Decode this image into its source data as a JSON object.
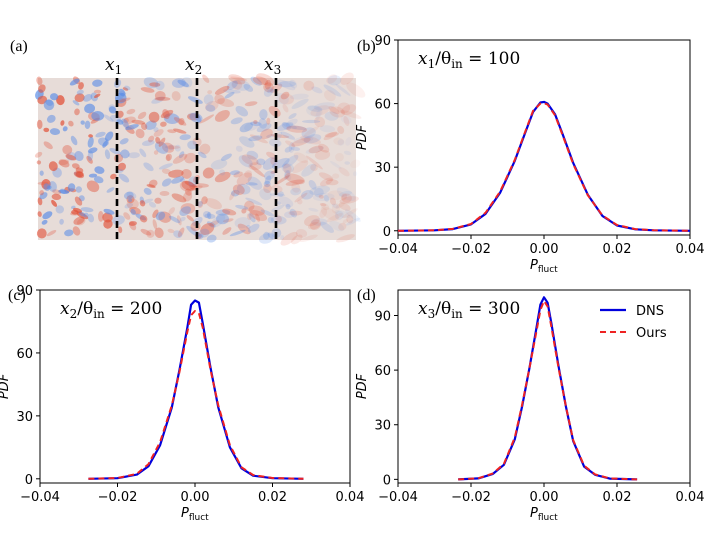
{
  "colors": {
    "dns": "#0000dd",
    "ours": "#ee2222"
  },
  "field_panel": {
    "label": "(a)",
    "markers": [
      {
        "main": "x",
        "sub": "1"
      },
      {
        "main": "x",
        "sub": "2"
      },
      {
        "main": "x",
        "sub": "3"
      }
    ]
  },
  "chart_data": [
    {
      "type": "line",
      "panel_label": "(b)",
      "annotation": {
        "var": "x",
        "var_sub": "1",
        "sep": "/θ",
        "theta_sub": "in",
        "value": " = 100"
      },
      "xlabel": {
        "main": "P",
        "sub": "fluct"
      },
      "ylabel": "PDF",
      "xlim": [
        -0.04,
        0.04
      ],
      "ylim": [
        -2,
        90
      ],
      "xticks": [
        "−0.04",
        "−0.02",
        "0.00",
        "0.02",
        "0.04"
      ],
      "xtick_values": [
        -0.04,
        -0.02,
        0.0,
        0.02,
        0.04
      ],
      "yticks": [
        "0",
        "30",
        "60",
        "90"
      ],
      "ytick_values": [
        0,
        30,
        60,
        90
      ],
      "series": [
        {
          "x": [
            -0.04,
            -0.03,
            -0.025,
            -0.02,
            -0.016,
            -0.012,
            -0.008,
            -0.005,
            -0.003,
            -0.001,
            0.0,
            0.001,
            0.003,
            0.005,
            0.008,
            0.012,
            0.016,
            0.02,
            0.025,
            0.03,
            0.04
          ],
          "y": [
            0,
            0.2,
            0.8,
            3,
            8,
            18,
            33,
            47,
            56,
            60.5,
            60.8,
            60,
            55,
            46,
            32,
            17,
            7,
            2.5,
            0.7,
            0.2,
            0
          ]
        },
        {
          "x": [
            -0.04,
            -0.03,
            -0.025,
            -0.02,
            -0.016,
            -0.012,
            -0.008,
            -0.005,
            -0.003,
            -0.001,
            0.0,
            0.001,
            0.003,
            0.005,
            0.008,
            0.012,
            0.016,
            0.02,
            0.025,
            0.03,
            0.04
          ],
          "y": [
            0,
            0.2,
            0.9,
            3.2,
            8.5,
            18.5,
            33.5,
            47.5,
            56.5,
            60,
            60.2,
            59.5,
            54.5,
            45.5,
            31.5,
            16.8,
            7.2,
            2.7,
            0.8,
            0.2,
            0
          ]
        }
      ]
    },
    {
      "type": "line",
      "panel_label": "(c)",
      "annotation": {
        "var": "x",
        "var_sub": "2",
        "sep": "/θ",
        "theta_sub": "in",
        "value": " = 200"
      },
      "xlabel": {
        "main": "P",
        "sub": "fluct"
      },
      "ylabel": "PDF",
      "xlim": [
        -0.04,
        0.04
      ],
      "ylim": [
        -2,
        90
      ],
      "xticks": [
        "−0.04",
        "−0.02",
        "0.00",
        "0.02",
        "0.04"
      ],
      "xtick_values": [
        -0.04,
        -0.02,
        0.0,
        0.02,
        0.04
      ],
      "yticks": [
        "0",
        "30",
        "60",
        "90"
      ],
      "ytick_values": [
        0,
        30,
        60,
        90
      ],
      "series": [
        {
          "x": [
            -0.0275,
            -0.02,
            -0.015,
            -0.012,
            -0.009,
            -0.006,
            -0.004,
            -0.002,
            -0.001,
            0.0,
            0.001,
            0.002,
            0.004,
            0.006,
            0.009,
            0.012,
            0.015,
            0.02,
            0.028
          ],
          "y": [
            0,
            0.3,
            2,
            6,
            16,
            34,
            52,
            72,
            83,
            85,
            84,
            74,
            53,
            34,
            15,
            5,
            1.5,
            0.3,
            0
          ]
        },
        {
          "x": [
            -0.0275,
            -0.02,
            -0.015,
            -0.012,
            -0.009,
            -0.006,
            -0.004,
            -0.002,
            -0.001,
            0.0,
            0.001,
            0.002,
            0.004,
            0.006,
            0.009,
            0.012,
            0.015,
            0.02,
            0.028
          ],
          "y": [
            0,
            0.4,
            2.4,
            7,
            17.5,
            35,
            51,
            70,
            78,
            80,
            79,
            72,
            52,
            35,
            16,
            5.5,
            1.8,
            0.4,
            0
          ]
        }
      ]
    },
    {
      "type": "line",
      "panel_label": "(d)",
      "annotation": {
        "var": "x",
        "var_sub": "3",
        "sep": "/θ",
        "theta_sub": "in",
        "value": " = 300"
      },
      "xlabel": {
        "main": "P",
        "sub": "fluct"
      },
      "ylabel": "PDF",
      "xlim": [
        -0.04,
        0.04
      ],
      "ylim": [
        -2,
        104
      ],
      "xticks": [
        "−0.04",
        "−0.02",
        "0.00",
        "0.02",
        "0.04"
      ],
      "xtick_values": [
        -0.04,
        -0.02,
        0.0,
        0.02,
        0.04
      ],
      "yticks": [
        "0",
        "30",
        "60",
        "90"
      ],
      "ytick_values": [
        0,
        30,
        60,
        90
      ],
      "legend": {
        "position": "upper right",
        "entries": [
          "DNS",
          "Ours"
        ]
      },
      "series": [
        {
          "name": "DNS",
          "x": [
            -0.0235,
            -0.018,
            -0.014,
            -0.011,
            -0.008,
            -0.006,
            -0.004,
            -0.002,
            -0.001,
            0.0,
            0.001,
            0.002,
            0.004,
            0.006,
            0.008,
            0.011,
            0.014,
            0.018,
            0.0255
          ],
          "y": [
            0,
            0.5,
            3,
            8,
            22,
            40,
            61,
            84,
            96,
            100,
            97,
            86,
            62,
            40,
            21,
            7,
            2.5,
            0.4,
            0
          ]
        },
        {
          "name": "Ours",
          "x": [
            -0.0235,
            -0.018,
            -0.014,
            -0.011,
            -0.008,
            -0.006,
            -0.004,
            -0.002,
            -0.001,
            0.0,
            0.001,
            0.002,
            0.004,
            0.006,
            0.008,
            0.011,
            0.014,
            0.018,
            0.0255
          ],
          "y": [
            0,
            0.6,
            3.3,
            8.5,
            23,
            41,
            61,
            82,
            93,
            98,
            95,
            84,
            61,
            40,
            21.5,
            7.5,
            2.7,
            0.5,
            0
          ]
        }
      ]
    }
  ]
}
